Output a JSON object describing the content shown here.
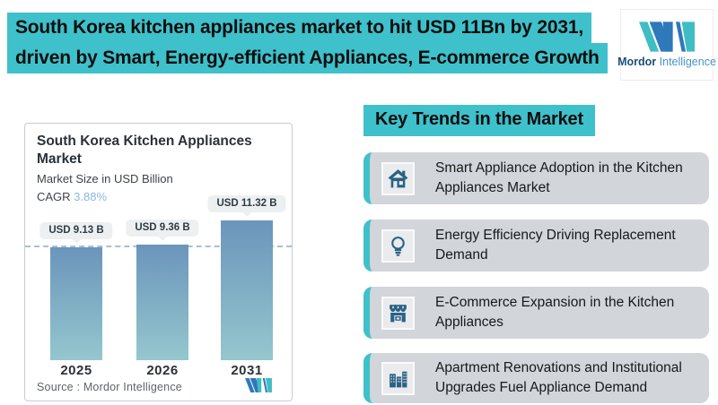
{
  "header": {
    "title_line1": "South Korea kitchen appliances market to hit USD 11Bn by 2031,",
    "title_line2": "driven by Smart, Energy-efficient Appliances, E-commerce Growth",
    "logo": {
      "word_bold": "Mordor",
      "word_light": "Intelligence"
    }
  },
  "chart_card": {
    "title": "South Korea Kitchen Appliances Market",
    "subtitle": "Market Size in USD Billion",
    "cagr_label": "CAGR ",
    "cagr_value": "3.88%",
    "source": "Source :  Mordor Intelligence"
  },
  "chart_data": {
    "type": "bar",
    "title": "South Korea Kitchen Appliances Market",
    "subtitle": "Market Size in USD Billion",
    "cagr": "3.88%",
    "categories": [
      "2025",
      "2026",
      "2031"
    ],
    "values": [
      9.13,
      9.36,
      11.32
    ],
    "bar_labels": [
      "USD 9.13 B",
      "USD 9.36 B",
      "USD 11.32 B"
    ],
    "xlabel": "",
    "ylabel": "Market Size in USD Billion",
    "ylim": [
      0,
      12
    ],
    "grid": false,
    "legend": "none",
    "reference_line_at": 9.13,
    "reference_line_style": "horizontal dashed at 2025 value"
  },
  "trends": {
    "heading": "Key Trends in the Market",
    "items": [
      {
        "icon": "house-icon",
        "text": "Smart Appliance Adoption in the Kitchen Appliances Market"
      },
      {
        "icon": "lightbulb-icon",
        "text": "Energy Efficiency Driving Replacement Demand"
      },
      {
        "icon": "storefront-icon",
        "text": "E-Commerce Expansion in the Kitchen Appliances"
      },
      {
        "icon": "buildings-icon",
        "text": "Apartment Renovations and Institutional Upgrades Fuel Appliance Demand"
      }
    ]
  },
  "colors": {
    "teal_highlight": "#3ec1cb",
    "title_text": "#0d0d0d",
    "bar_gradient_top": "#6b95bb",
    "bar_gradient_bottom": "#95c7ce",
    "dashed_reference_line": "#a9bfd2",
    "value_pill_bg": "#edf0f1",
    "card_border": "#c8cdd1",
    "cagr_value_text": "#8db7d9",
    "trend_row_bg": "#d2d5d9",
    "trend_icon_blue": "#2a6186",
    "logo_blue": "#2e79b9",
    "logo_teal": "#3fbdc5",
    "logo_text_dark": "#1c4e78",
    "logo_text_light": "#4a94c8"
  }
}
